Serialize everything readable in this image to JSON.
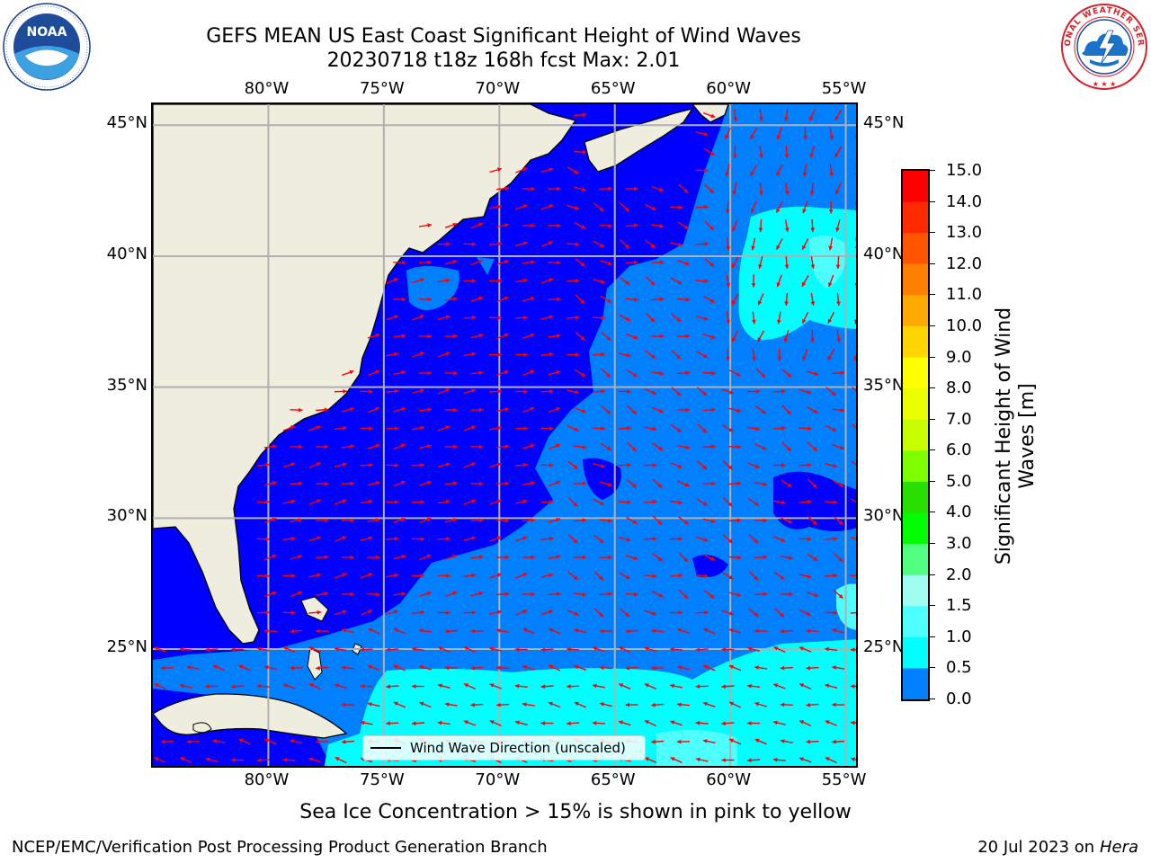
{
  "header": {
    "title_line1": "GEFS MEAN US East Coast Significant Height of Wind Waves",
    "title_line2": "20230718 t18z 168h fcst   Max: 2.01"
  },
  "logos": {
    "noaa": {
      "icon": "noaa-logo",
      "text": "NOAA",
      "ring_text": "NATIONAL OCEANIC AND ATMOSPHERIC ADMINISTRATION · U.S. DEPARTMENT OF COMMERCE"
    },
    "nws": {
      "icon": "nws-logo",
      "ring_text": "NATIONAL WEATHER SERVICE"
    }
  },
  "map": {
    "lon_ticks": [
      "80°W",
      "75°W",
      "70°W",
      "65°W",
      "60°W",
      "55°W"
    ],
    "lat_ticks": [
      "45°N",
      "40°N",
      "35°N",
      "30°N",
      "25°N"
    ],
    "lon_values": [
      -80,
      -75,
      -70,
      -65,
      -60,
      -55
    ],
    "lat_values": [
      45,
      40,
      35,
      30,
      25
    ],
    "lon_range": [
      -85,
      -54.4
    ],
    "lat_range": [
      20.4,
      45.8
    ],
    "colors": {
      "land": "#efedde",
      "sea_0_0_5": "#0000ff",
      "sea_0_5_1_0": "#0080ff",
      "sea_1_0_1_5": "#00ffff",
      "sea_1_5_2_0": "#4dffff",
      "grid": "#b0b0b0",
      "arrow": "#ff0000"
    },
    "arrow_legend": "Wind Wave Direction (unscaled)"
  },
  "colorbar": {
    "title_line1": "Significant Height of Wind",
    "title_line2": "Waves [m]",
    "labels": [
      "15.0",
      "14.0",
      "13.0",
      "12.0",
      "11.0",
      "10.0",
      "9.0",
      "8.0",
      "7.0",
      "6.0",
      "5.0",
      "4.0",
      "3.0",
      "2.0",
      "1.5",
      "1.0",
      "0.5",
      "0.0"
    ],
    "colors": [
      "#ff0000",
      "#ff2a00",
      "#ff5500",
      "#ff8000",
      "#ffaa00",
      "#ffd500",
      "#ffff00",
      "#eaff00",
      "#c8ff00",
      "#7dff00",
      "#28e000",
      "#00ff00",
      "#50ff80",
      "#a0fff0",
      "#4dffff",
      "#00ffff",
      "#0080ff",
      "#0000ff"
    ]
  },
  "caption": "Sea Ice Concentration > 15% is shown in pink to yellow",
  "footer": {
    "left": "NCEP/EMC/Verification Post Processing Product Generation Branch",
    "date": "20 Jul 2023 on ",
    "host": "Hera"
  }
}
